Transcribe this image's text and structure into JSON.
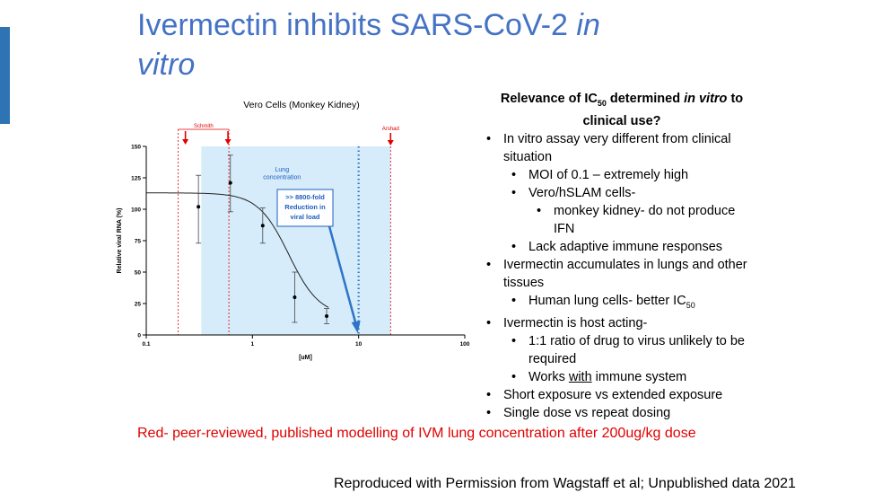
{
  "slide": {
    "title_part1": "Ivermectin inhibits SARS-CoV-2 ",
    "title_italic1": "in",
    "title_italic2": "vitro",
    "red_note": "Red- peer-reviewed, published modelling of IVM lung concentration after 200ug/kg dose",
    "credit": "Reproduced with Permission from Wagstaff et al; Unpublished data 2021",
    "accent_color": "#2e74b5",
    "title_color": "#4472c4"
  },
  "relevance": {
    "heading_a": "Relevance of IC",
    "heading_sub": "50",
    "heading_b": " determined ",
    "heading_italic": "in vitro",
    "heading_c": " to clinical use?",
    "bullets": {
      "b1": "In vitro assay very different from clinical situation",
      "b1a": "MOI of 0.1 – extremely high",
      "b1b": "Vero/hSLAM cells-",
      "b1b1": "monkey kidney- do not produce IFN",
      "b1c": "Lack adaptive immune responses",
      "b2": "Ivermectin accumulates in lungs and other tissues",
      "b2a": "Human lung cells- better IC",
      "b2a_sub": "50",
      "b3": "Ivermectin is host acting-",
      "b3a": "1:1 ratio of drug to virus unlikely to be required",
      "b3b_pre": "Works ",
      "b3b_u": "with",
      "b3b_post": " immune system",
      "b4": "Short exposure vs extended exposure",
      "b5": "Single dose vs repeat dosing"
    }
  },
  "chart_data": {
    "type": "scatter",
    "title": "Vero Cells (Monkey Kidney)",
    "xlabel": "[uM]",
    "ylabel": "Relative viral RNA (%)",
    "x_scale": "log",
    "xlim": [
      0.1,
      100
    ],
    "ylim": [
      0,
      150
    ],
    "x_ticks": [
      0.1,
      1,
      10,
      100
    ],
    "x_tick_labels": [
      "0.1",
      "1",
      "10",
      "100"
    ],
    "y_ticks": [
      0,
      25,
      50,
      75,
      100,
      125,
      150
    ],
    "y_tick_labels": [
      "0",
      "25",
      "50",
      "75",
      "100",
      "125",
      "150"
    ],
    "points": [
      {
        "x": 0.31,
        "y": 102,
        "err_low": 73,
        "err_high": 127
      },
      {
        "x": 0.62,
        "y": 121,
        "err_low": 98,
        "err_high": 143
      },
      {
        "x": 1.25,
        "y": 87,
        "err_low": 73,
        "err_high": 101
      },
      {
        "x": 2.5,
        "y": 30,
        "err_low": 10,
        "err_high": 50
      },
      {
        "x": 5,
        "y": 15,
        "err_low": 9,
        "err_high": 21
      }
    ],
    "fit_curve": {
      "top": 113,
      "bottom": 15,
      "ic50": 2.2,
      "hill": 3
    },
    "lung_band": {
      "x_from": 0.33,
      "x_to": 20,
      "label": "Lung concentration",
      "color": "#d6ecfa",
      "label_color": "#1f5fbf"
    },
    "red_markers": [
      {
        "x_left": 0.2,
        "x_right": 0.6,
        "label": "Schmith"
      },
      {
        "x": 20,
        "label": "Arshad"
      }
    ],
    "blue_dotted_x": 10,
    "annotation_box": {
      "lines": [
        ">> 8800-fold",
        "Reduction in",
        "viral load"
      ],
      "color": "#1f5fbf"
    },
    "red_color": "#e00000",
    "blue_color": "#2e74c8",
    "grid": false,
    "legend": "none"
  }
}
